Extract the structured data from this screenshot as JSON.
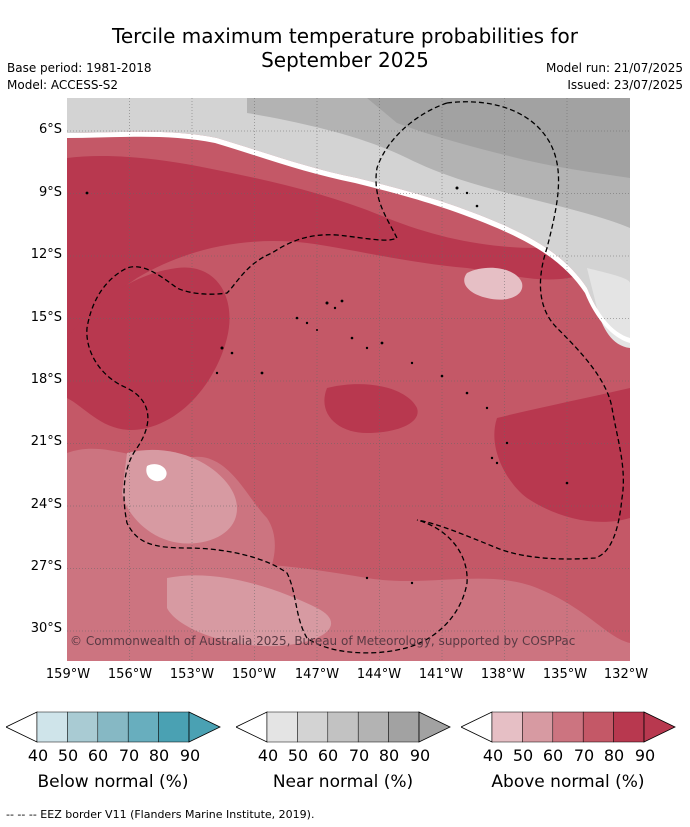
{
  "title": "Tercile maximum temperature probabilities for September 2025",
  "title_line1": "Tercile maximum temperature probabilities for",
  "title_line2": "September 2025",
  "meta": {
    "base_period": "Base period: 1981-2018",
    "model": "Model: ACCESS-S2",
    "model_run": "Model run: 21/07/2025",
    "issued": "Issued: 23/07/2025"
  },
  "map": {
    "lat_labels": [
      "6°S",
      "9°S",
      "12°S",
      "15°S",
      "18°S",
      "21°S",
      "24°S",
      "27°S",
      "30°S"
    ],
    "lon_labels": [
      "159°W",
      "156°W",
      "153°W",
      "150°W",
      "147°W",
      "144°W",
      "141°W",
      "138°W",
      "135°W",
      "132°W"
    ],
    "copyright": "© Commonwealth of Australia 2025, Bureau of Meteorology, supported by COSPPac"
  },
  "legends": [
    {
      "caption": "Below normal (%)",
      "ticks": [
        "40",
        "50",
        "60",
        "70",
        "80",
        "90"
      ],
      "colors": [
        "#cfe4ea",
        "#a9cbd3",
        "#86b8c4",
        "#68aebe",
        "#4aa1b3"
      ]
    },
    {
      "caption": "Near normal (%)",
      "ticks": [
        "40",
        "50",
        "60",
        "70",
        "80",
        "90"
      ],
      "colors": [
        "#e4e4e4",
        "#d3d3d3",
        "#c2c2c2",
        "#b3b3b3",
        "#a2a2a2"
      ]
    },
    {
      "caption": "Above normal (%)",
      "ticks": [
        "40",
        "50",
        "60",
        "70",
        "80",
        "90"
      ],
      "colors": [
        "#e6bfc5",
        "#d79aa2",
        "#cc7480",
        "#c45867",
        "#b8384f"
      ]
    }
  ],
  "footnote": "--  --  -- EEZ border V11 (Flanders Marine Institute, 2019)."
}
